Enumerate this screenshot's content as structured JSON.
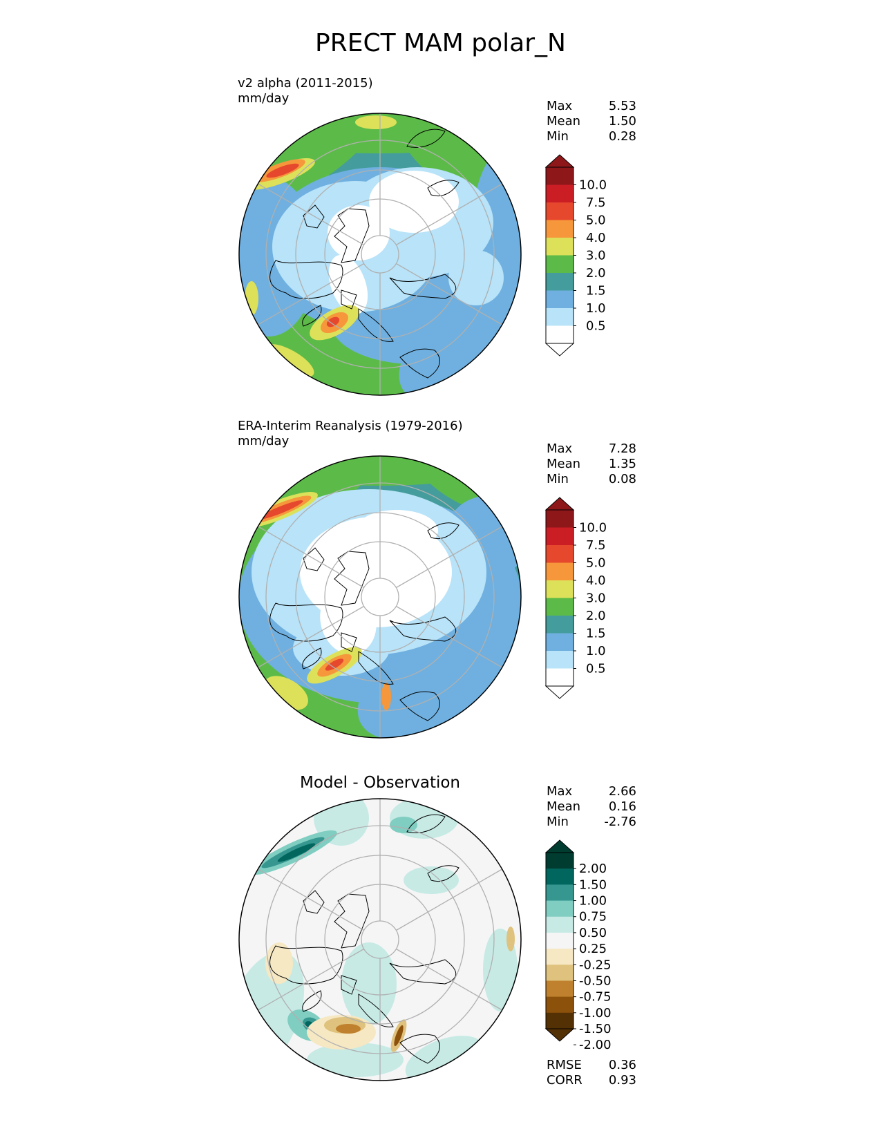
{
  "title": "PRECT MAM polar_N",
  "colors": {
    "prect": [
      "#ffffff",
      "#b8e3f8",
      "#6fb0e0",
      "#449d9c",
      "#5cbb48",
      "#dde15a",
      "#f6973b",
      "#e6482d",
      "#cb1d24",
      "#8e171a"
    ],
    "diff": [
      "#543005",
      "#8c510a",
      "#bf812d",
      "#dfc27d",
      "#f6e8c3",
      "#f5f5f5",
      "#c7eae5",
      "#80cdc1",
      "#35978f",
      "#01665e",
      "#003c30"
    ],
    "land_outline": "#000000",
    "grid": "#b0b0b0"
  },
  "panels": [
    {
      "title": "v2 alpha (2011-2015)",
      "units": "mm/day",
      "stats": [
        {
          "label": "Max",
          "value": "5.53"
        },
        {
          "label": "Mean",
          "value": "1.50"
        },
        {
          "label": "Min",
          "value": "0.28"
        }
      ],
      "colorbar_ticks": [
        "10.0",
        "7.5",
        "5.0",
        "4.0",
        "3.0",
        "2.0",
        "1.5",
        "1.0",
        "0.5"
      ]
    },
    {
      "title": "ERA-Interim Reanalysis (1979-2016)",
      "units": "mm/day",
      "stats": [
        {
          "label": "Max",
          "value": "7.28"
        },
        {
          "label": "Mean",
          "value": "1.35"
        },
        {
          "label": "Min",
          "value": "0.08"
        }
      ],
      "colorbar_ticks": [
        "10.0",
        "7.5",
        "5.0",
        "4.0",
        "3.0",
        "2.0",
        "1.5",
        "1.0",
        "0.5"
      ]
    },
    {
      "title": "Model - Observation",
      "stats": [
        {
          "label": "Max",
          "value": "2.66"
        },
        {
          "label": "Mean",
          "value": "0.16"
        },
        {
          "label": "Min",
          "value": "-2.76"
        }
      ],
      "colorbar_ticks": [
        "2.00",
        "1.50",
        "1.00",
        "0.75",
        "0.50",
        "0.25",
        "-0.25",
        "-0.50",
        "-0.75",
        "-1.00",
        "-1.50",
        "-2.00"
      ],
      "metrics": [
        {
          "label": "RMSE",
          "value": "0.36"
        },
        {
          "label": "CORR",
          "value": "0.93"
        }
      ]
    }
  ]
}
